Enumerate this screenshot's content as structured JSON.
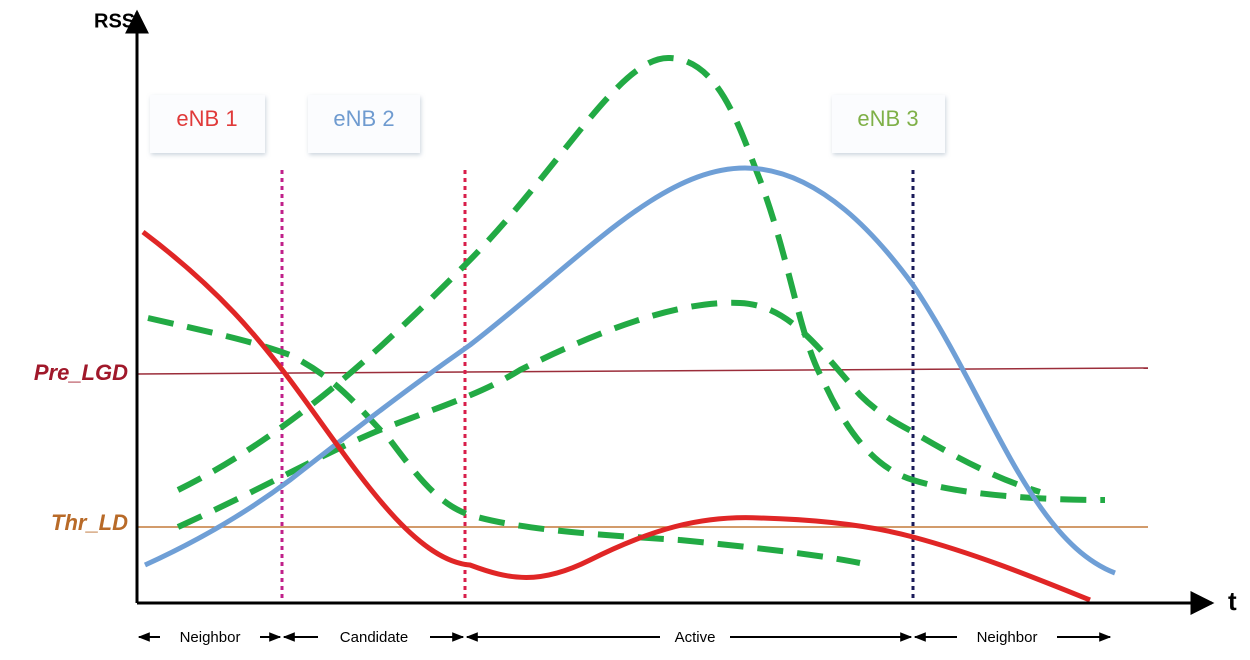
{
  "axes": {
    "y_label": "RSS",
    "x_label": "t"
  },
  "thresholds": [
    {
      "label": "Pre_LGD"
    },
    {
      "label": "Thr_LD"
    }
  ],
  "stations": [
    {
      "label": "eNB 1"
    },
    {
      "label": "eNB 2"
    },
    {
      "label": "eNB 3"
    }
  ],
  "phases": [
    {
      "label": "Neighbor"
    },
    {
      "label": "Candidate"
    },
    {
      "label": "Active"
    },
    {
      "label": "Neighbor"
    }
  ]
}
